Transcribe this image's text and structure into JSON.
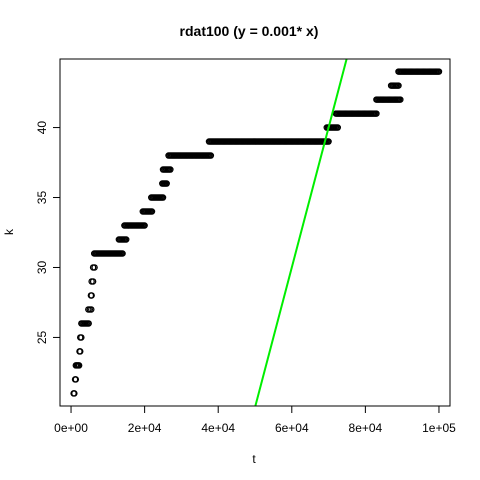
{
  "chart_data": {
    "type": "scatter",
    "title": "rdat100 (y = 0.001* x)",
    "xlabel": "t",
    "ylabel": "k",
    "xlim": [
      -3000,
      103000
    ],
    "ylim": [
      20.1,
      44.9
    ],
    "x_ticks": [
      0,
      20000,
      40000,
      60000,
      80000,
      100000
    ],
    "x_tick_labels": [
      "0e+00",
      "2e+04",
      "4e+04",
      "6e+04",
      "8e+04",
      "1e+05"
    ],
    "y_ticks": [
      25,
      30,
      35,
      40
    ],
    "y_tick_labels": [
      "25",
      "30",
      "35",
      "40"
    ],
    "grid": false,
    "segments": [
      {
        "k": 21,
        "t_start": 700,
        "t_end": 900
      },
      {
        "k": 22,
        "t_start": 1100,
        "t_end": 1300
      },
      {
        "k": 23,
        "t_start": 1300,
        "t_end": 2200
      },
      {
        "k": 24,
        "t_start": 2300,
        "t_end": 2500
      },
      {
        "k": 25,
        "t_start": 2500,
        "t_end": 2800
      },
      {
        "k": 26,
        "t_start": 2800,
        "t_end": 4800
      },
      {
        "k": 27,
        "t_start": 4700,
        "t_end": 5500
      },
      {
        "k": 28,
        "t_start": 5400,
        "t_end": 5600
      },
      {
        "k": 29,
        "t_start": 5600,
        "t_end": 6000
      },
      {
        "k": 30,
        "t_start": 6000,
        "t_end": 6400
      },
      {
        "k": 31,
        "t_start": 6300,
        "t_end": 14000
      },
      {
        "k": 32,
        "t_start": 13000,
        "t_end": 15000
      },
      {
        "k": 33,
        "t_start": 14500,
        "t_end": 20000
      },
      {
        "k": 34,
        "t_start": 19500,
        "t_end": 22000
      },
      {
        "k": 35,
        "t_start": 21800,
        "t_end": 25000
      },
      {
        "k": 36,
        "t_start": 24800,
        "t_end": 26000
      },
      {
        "k": 37,
        "t_start": 25000,
        "t_end": 27000
      },
      {
        "k": 38,
        "t_start": 26500,
        "t_end": 38000
      },
      {
        "k": 39,
        "t_start": 37500,
        "t_end": 70000
      },
      {
        "k": 40,
        "t_start": 69500,
        "t_end": 72500
      },
      {
        "k": 41,
        "t_start": 72000,
        "t_end": 83000
      },
      {
        "k": 42,
        "t_start": 83000,
        "t_end": 89500
      },
      {
        "k": 43,
        "t_start": 87000,
        "t_end": 89000
      },
      {
        "k": 44,
        "t_start": 89000,
        "t_end": 100000
      }
    ],
    "reference_line": {
      "slope": 0.001,
      "intercept": -30,
      "color": "#00ee00"
    }
  }
}
